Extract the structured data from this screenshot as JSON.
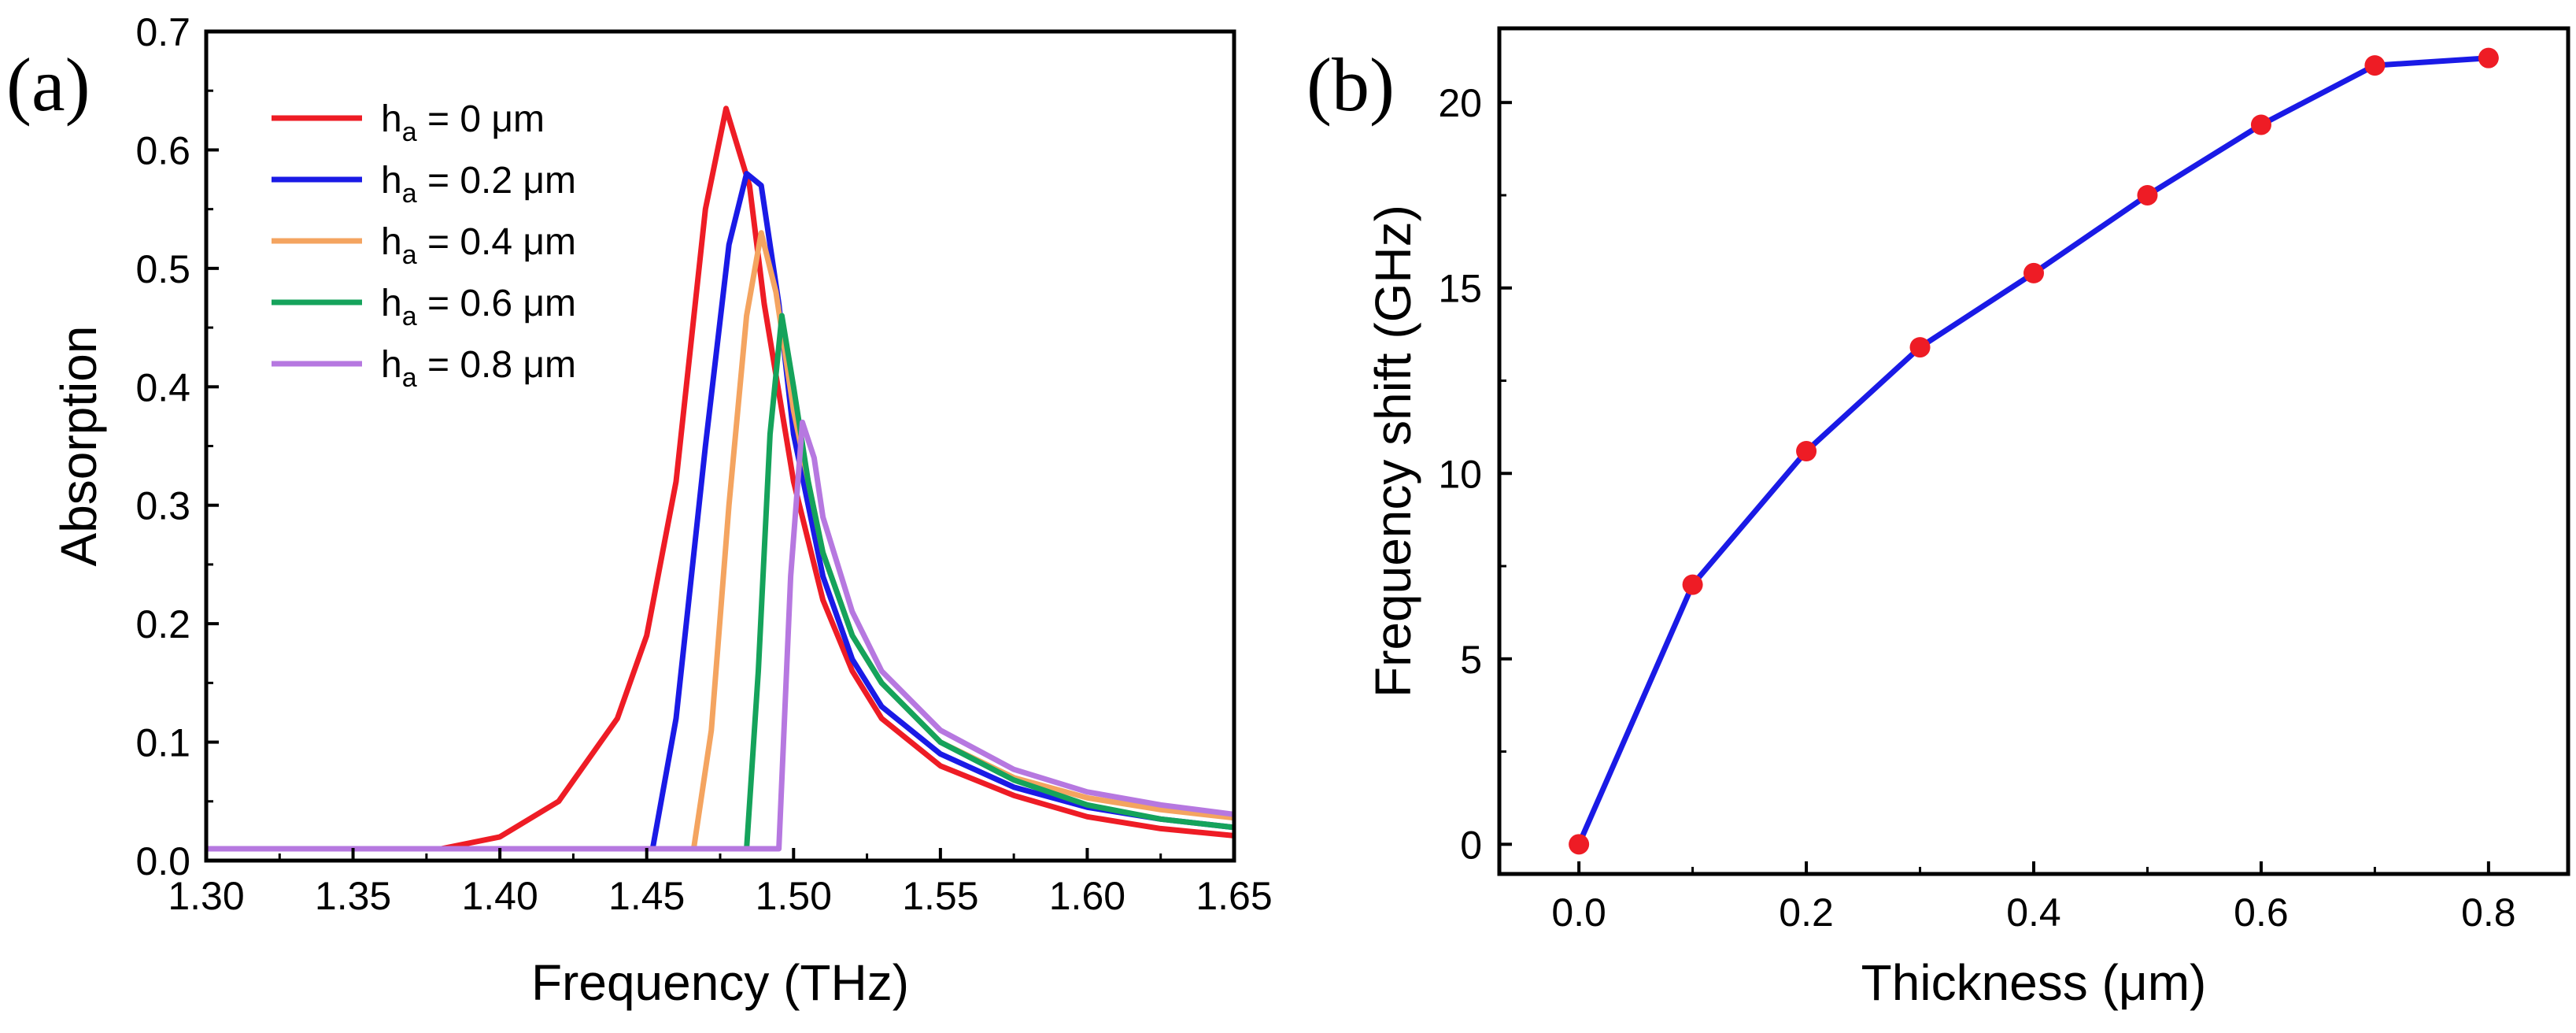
{
  "chart_data": [
    {
      "type": "line",
      "panel_label": "(a)",
      "xlabel": "Frequency (THz)",
      "ylabel": "Absorption",
      "xlim": [
        1.3,
        1.65
      ],
      "ylim": [
        0.0,
        0.7
      ],
      "xticks": [
        "1.30",
        "1.35",
        "1.40",
        "1.45",
        "1.50",
        "1.55",
        "1.60",
        "1.65"
      ],
      "yticks": [
        "0.0",
        "0.1",
        "0.2",
        "0.3",
        "0.4",
        "0.5",
        "0.6",
        "0.7"
      ],
      "legend_position": "top-left",
      "series": [
        {
          "name": "ha = 0 μm",
          "label_base": "h",
          "label_sub": "a",
          "label_rest": " = 0 μm",
          "color": "#ee1c25",
          "x": [
            1.3,
            1.38,
            1.4,
            1.42,
            1.44,
            1.45,
            1.46,
            1.47,
            1.477,
            1.485,
            1.49,
            1.5,
            1.51,
            1.52,
            1.53,
            1.55,
            1.575,
            1.6,
            1.625,
            1.65
          ],
          "y": [
            0.01,
            0.01,
            0.02,
            0.05,
            0.12,
            0.19,
            0.32,
            0.55,
            0.635,
            0.57,
            0.47,
            0.32,
            0.22,
            0.16,
            0.12,
            0.08,
            0.055,
            0.037,
            0.027,
            0.021
          ]
        },
        {
          "name": "ha = 0.2 μm",
          "label_base": "h",
          "label_sub": "a",
          "label_rest": " = 0.2 μm",
          "color": "#1a1ae6",
          "x": [
            1.3,
            1.452,
            1.46,
            1.47,
            1.478,
            1.484,
            1.489,
            1.495,
            1.5,
            1.51,
            1.52,
            1.53,
            1.55,
            1.575,
            1.6,
            1.625,
            1.65
          ],
          "y": [
            0.01,
            0.01,
            0.12,
            0.35,
            0.52,
            0.58,
            0.57,
            0.47,
            0.36,
            0.24,
            0.17,
            0.13,
            0.09,
            0.062,
            0.045,
            0.035,
            0.028
          ]
        },
        {
          "name": "ha = 0.4 μm",
          "label_base": "h",
          "label_sub": "a",
          "label_rest": " = 0.4 μm",
          "color": "#f4a460",
          "x": [
            1.3,
            1.466,
            1.472,
            1.478,
            1.484,
            1.489,
            1.494,
            1.5,
            1.51,
            1.52,
            1.53,
            1.55,
            1.575,
            1.6,
            1.625,
            1.65
          ],
          "y": [
            0.01,
            0.01,
            0.11,
            0.3,
            0.46,
            0.53,
            0.48,
            0.38,
            0.26,
            0.19,
            0.15,
            0.1,
            0.07,
            0.053,
            0.043,
            0.036
          ]
        },
        {
          "name": "ha = 0.6 μm",
          "label_base": "h",
          "label_sub": "a",
          "label_rest": " = 0.6 μm",
          "color": "#15a35b",
          "x": [
            1.3,
            1.484,
            1.488,
            1.492,
            1.496,
            1.5,
            1.505,
            1.51,
            1.52,
            1.53,
            1.55,
            1.575,
            1.6,
            1.625,
            1.65
          ],
          "y": [
            0.01,
            0.01,
            0.16,
            0.36,
            0.46,
            0.4,
            0.32,
            0.26,
            0.19,
            0.15,
            0.1,
            0.068,
            0.047,
            0.035,
            0.028
          ]
        },
        {
          "name": "ha = 0.8 μm",
          "label_base": "h",
          "label_sub": "a",
          "label_rest": " = 0.8 μm",
          "color": "#b678e0",
          "x": [
            1.3,
            1.495,
            1.499,
            1.503,
            1.507,
            1.51,
            1.52,
            1.53,
            1.55,
            1.575,
            1.6,
            1.625,
            1.65
          ],
          "y": [
            0.01,
            0.01,
            0.24,
            0.37,
            0.34,
            0.29,
            0.21,
            0.16,
            0.11,
            0.077,
            0.058,
            0.047,
            0.039
          ]
        }
      ]
    },
    {
      "type": "line",
      "panel_label": "(b)",
      "xlabel": "Thickness (μm)",
      "ylabel": "Frequency shift (GHz)",
      "xlim": [
        -0.07,
        0.87
      ],
      "ylim": [
        -0.8,
        22
      ],
      "xticks": [
        "0.0",
        "0.2",
        "0.4",
        "0.6",
        "0.8"
      ],
      "yticks": [
        "0",
        "5",
        "10",
        "15",
        "20"
      ],
      "line_color": "#1a1ae6",
      "marker_color": "#ee1c25",
      "x": [
        0.0,
        0.1,
        0.2,
        0.3,
        0.4,
        0.5,
        0.6,
        0.7,
        0.8
      ],
      "y": [
        0.0,
        7.0,
        10.6,
        13.4,
        15.4,
        17.5,
        19.4,
        21.0,
        21.2
      ]
    }
  ]
}
